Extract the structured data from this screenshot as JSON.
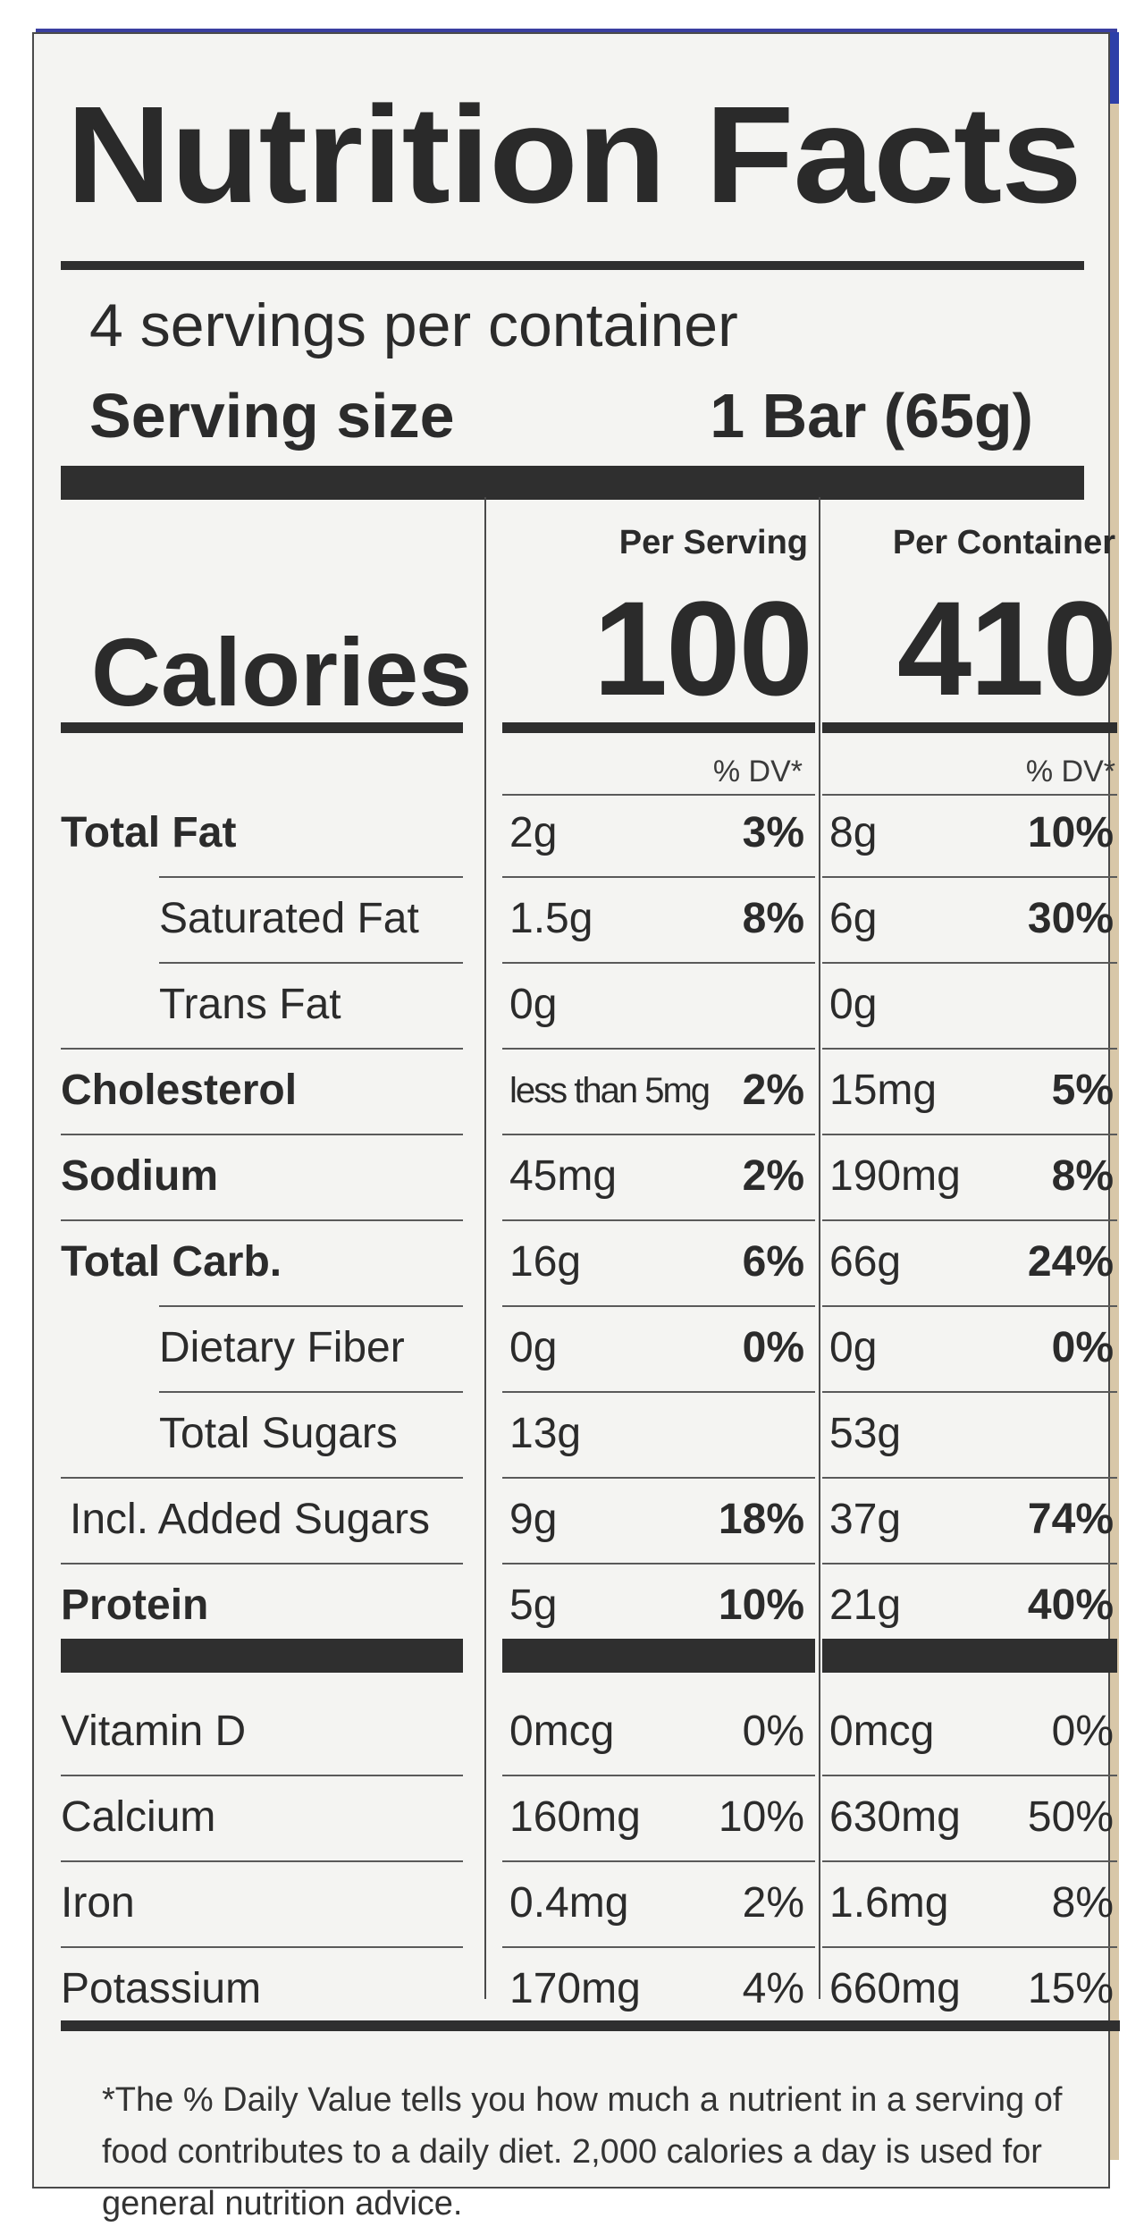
{
  "label": {
    "title": "Nutrition Facts",
    "servings_per_container": "4 servings per container",
    "serving_size_label": "Serving size",
    "serving_size_value": "1 Bar (65g)"
  },
  "columns": {
    "per_serving": "Per Serving",
    "per_container": "Per Container",
    "dv_header": "% DV*"
  },
  "calories": {
    "label": "Calories",
    "per_serving": "100",
    "per_container": "410"
  },
  "nutrients": [
    {
      "label": "Total Fat",
      "bold": true,
      "indent": false,
      "serv_amt": "2g",
      "serv_dv": "3%",
      "cont_amt": "8g",
      "cont_dv": "10%"
    },
    {
      "label": "Saturated Fat",
      "bold": false,
      "indent": true,
      "serv_amt": "1.5g",
      "serv_dv": "8%",
      "cont_amt": "6g",
      "cont_dv": "30%"
    },
    {
      "label": "Trans Fat",
      "bold": false,
      "indent": true,
      "serv_amt": "0g",
      "serv_dv": "",
      "cont_amt": "0g",
      "cont_dv": ""
    },
    {
      "label": "Cholesterol",
      "bold": true,
      "indent": false,
      "serv_amt": "less than 5mg",
      "serv_dv": "2%",
      "cont_amt": "15mg",
      "cont_dv": "5%"
    },
    {
      "label": "Sodium",
      "bold": true,
      "indent": false,
      "serv_amt": "45mg",
      "serv_dv": "2%",
      "cont_amt": "190mg",
      "cont_dv": "8%"
    },
    {
      "label": "Total Carb.",
      "bold": true,
      "indent": false,
      "serv_amt": "16g",
      "serv_dv": "6%",
      "cont_amt": "66g",
      "cont_dv": "24%"
    },
    {
      "label": "Dietary Fiber",
      "bold": false,
      "indent": true,
      "serv_amt": "0g",
      "serv_dv": "0%",
      "cont_amt": "0g",
      "cont_dv": "0%"
    },
    {
      "label": "Total Sugars",
      "bold": false,
      "indent": true,
      "serv_amt": "13g",
      "serv_dv": "",
      "cont_amt": "53g",
      "cont_dv": ""
    },
    {
      "label": "Incl. Added Sugars",
      "bold": false,
      "indent": false,
      "serv_amt": "9g",
      "serv_dv": "18%",
      "cont_amt": "37g",
      "cont_dv": "74%"
    },
    {
      "label": "Protein",
      "bold": true,
      "indent": false,
      "serv_amt": "5g",
      "serv_dv": "10%",
      "cont_amt": "21g",
      "cont_dv": "40%"
    }
  ],
  "vitamins": [
    {
      "label": "Vitamin D",
      "serv_amt": "0mcg",
      "serv_dv": "0%",
      "cont_amt": "0mcg",
      "cont_dv": "0%"
    },
    {
      "label": "Calcium",
      "serv_amt": "160mg",
      "serv_dv": "10%",
      "cont_amt": "630mg",
      "cont_dv": "50%"
    },
    {
      "label": "Iron",
      "serv_amt": "0.4mg",
      "serv_dv": "2%",
      "cont_amt": "1.6mg",
      "cont_dv": "8%"
    },
    {
      "label": "Potassium",
      "serv_amt": "170mg",
      "serv_dv": "4%",
      "cont_amt": "660mg",
      "cont_dv": "15%"
    }
  ],
  "footnote": "*The % Daily Value tells you how much a nutrient in a serving of food contributes to a daily diet. 2,000 calories a day is used for general nutrition advice."
}
